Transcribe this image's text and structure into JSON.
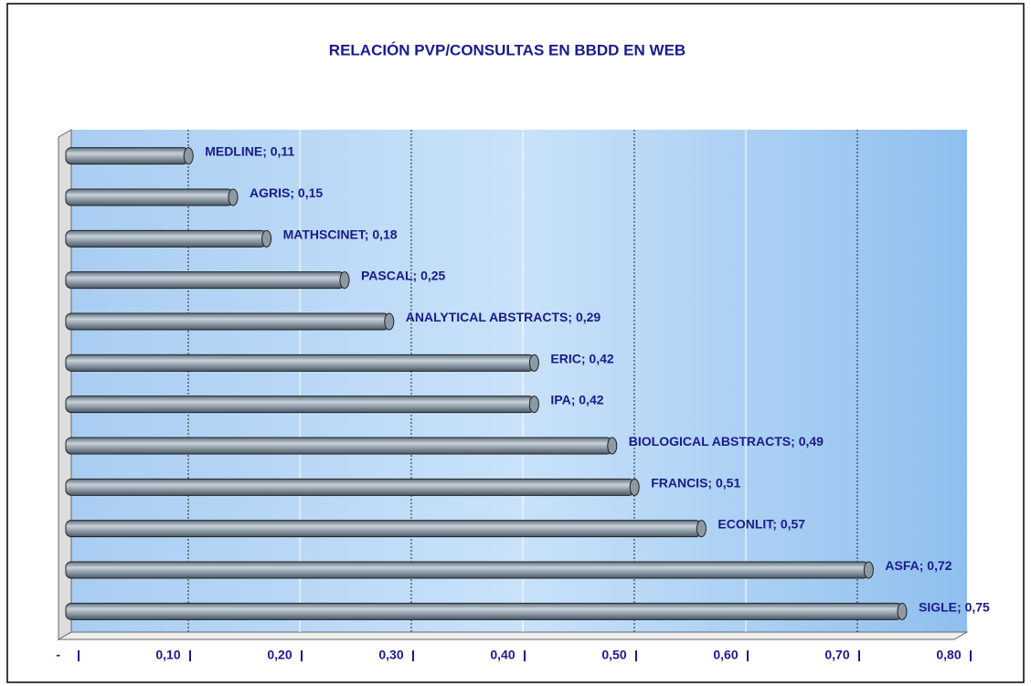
{
  "chart_data": {
    "type": "barh",
    "title": "RELACIÓN PVP/CONSULTAS EN BBDD EN WEB",
    "categories": [
      "MEDLINE",
      "AGRIS",
      "MATHSCINET",
      "PASCAL",
      "ANALYTICAL ABSTRACTS",
      "ERIC",
      "IPA",
      "BIOLOGICAL ABSTRACTS",
      "FRANCIS",
      "ECONLIT",
      "ASFA",
      "SIGLE"
    ],
    "values": [
      0.11,
      0.15,
      0.18,
      0.25,
      0.29,
      0.42,
      0.42,
      0.49,
      0.51,
      0.57,
      0.72,
      0.75
    ],
    "value_labels": [
      "0,11",
      "0,15",
      "0,18",
      "0,25",
      "0,29",
      "0,42",
      "0,42",
      "0,49",
      "0,51",
      "0,57",
      "0,72",
      "0,75"
    ],
    "label_separator": "; ",
    "color": "#8c9aa6",
    "xlim": [
      0,
      0.8
    ],
    "xticks": [
      {
        "value": 0,
        "label": "-"
      },
      {
        "value": 0.1,
        "label": "0,10"
      },
      {
        "value": 0.2,
        "label": "0,20"
      },
      {
        "value": 0.3,
        "label": "0,30"
      },
      {
        "value": 0.4,
        "label": "0,40"
      },
      {
        "value": 0.5,
        "label": "0,50"
      },
      {
        "value": 0.6,
        "label": "0,60"
      },
      {
        "value": 0.7,
        "label": "0,70"
      },
      {
        "value": 0.8,
        "label": "0,80"
      }
    ],
    "grid": true
  }
}
